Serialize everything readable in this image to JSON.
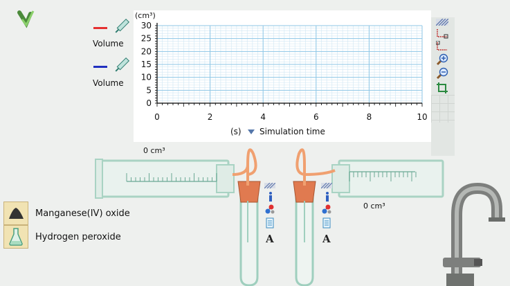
{
  "legend": [
    {
      "label": "Volume",
      "color": "#e53030"
    },
    {
      "label": "Volume",
      "color": "#2030c0"
    }
  ],
  "graph": {
    "y_unit": "(cm³)",
    "x_unit": "(s)",
    "x_label": "Simulation time",
    "y_ticks": [
      "30",
      "25",
      "20",
      "15",
      "10",
      "5",
      "0"
    ],
    "x_ticks": [
      "0",
      "2",
      "4",
      "6",
      "8",
      "10"
    ]
  },
  "chart_data": {
    "type": "line",
    "xlim": [
      0,
      10
    ],
    "ylim": [
      0,
      30
    ],
    "grid": true,
    "series": []
  },
  "readouts": {
    "left_syringe": "0 cm³",
    "right_syringe": "0 cm³"
  },
  "chemicals": [
    {
      "label": "Manganese(IV) oxide",
      "icon": "powder-pile-icon"
    },
    {
      "label": "Hydrogen peroxide",
      "icon": "flask-icon"
    }
  ],
  "tube_icons": [
    "hatch-icon",
    "info-icon",
    "molecule-icon",
    "beaker-icon",
    "text-label-icon"
  ],
  "toolbar": [
    "hatch-icon",
    "select-corner-icon",
    "select-corner-icon",
    "zoom-in-icon",
    "zoom-out-icon",
    "crop-icon"
  ],
  "colors": {
    "grid_major": "#8cc6e6",
    "grid_minor": "#cfe6f3",
    "tube": "#9fcfbe",
    "stopper": "#e07a50",
    "tubing": "#f0a070"
  }
}
